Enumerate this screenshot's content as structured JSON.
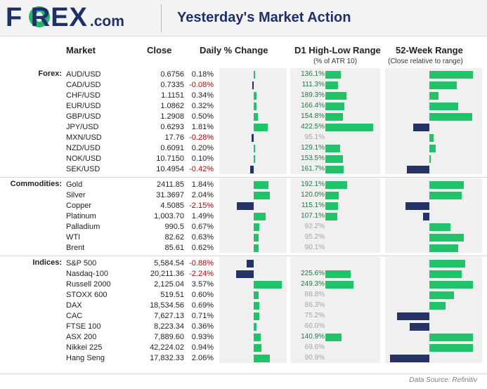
{
  "header": {
    "logo_main": "F   REX",
    "logo_sub": ".com",
    "title": "Yesterday's Market Action"
  },
  "columns": {
    "market": "Market",
    "close": "Close",
    "daily_change": "Daily % Change",
    "range": "D1 High-Low Range",
    "range_sub": "(% of ATR 10)",
    "week52": "52-Week Range",
    "week52_sub": "(Close relative to range)"
  },
  "groups": [
    {
      "label": "Forex:",
      "rows": [
        {
          "market": "AUD/USD",
          "close": "0.6756",
          "chg": "0.18%",
          "chg_v": 0.18,
          "rng": "136.1%",
          "rng_v": 136.1,
          "rng_strong": true,
          "w52": 0.62
        },
        {
          "market": "CAD/USD",
          "close": "0.7335",
          "chg": "-0.08%",
          "chg_v": -0.08,
          "rng": "111.3%",
          "rng_v": 111.3,
          "rng_strong": true,
          "w52": 0.39
        },
        {
          "market": "CHF/USD",
          "close": "1.1151",
          "chg": "0.34%",
          "chg_v": 0.34,
          "rng": "189.3%",
          "rng_v": 189.3,
          "rng_strong": true,
          "w52": 0.13
        },
        {
          "market": "EUR/USD",
          "close": "1.0862",
          "chg": "0.32%",
          "chg_v": 0.32,
          "rng": "166.4%",
          "rng_v": 166.4,
          "rng_strong": true,
          "w52": 0.41
        },
        {
          "market": "GBP/USD",
          "close": "1.2908",
          "chg": "0.50%",
          "chg_v": 0.5,
          "rng": "154.8%",
          "rng_v": 154.8,
          "rng_strong": true,
          "w52": 0.61
        },
        {
          "market": "JPY/USD",
          "close": "0.6293",
          "chg": "1.81%",
          "chg_v": 1.81,
          "rng": "422.5%",
          "rng_v": 422.5,
          "rng_strong": true,
          "w52": -0.23
        },
        {
          "market": "MXN/USD",
          "close": "17.76",
          "chg": "-0.28%",
          "chg_v": -0.28,
          "rng": "95.1%",
          "rng_v": 95.1,
          "rng_strong": false,
          "w52": 0.06
        },
        {
          "market": "NZD/USD",
          "close": "0.6091",
          "chg": "0.20%",
          "chg_v": 0.2,
          "rng": "129.1%",
          "rng_v": 129.1,
          "rng_strong": true,
          "w52": 0.09
        },
        {
          "market": "NOK/USD",
          "close": "10.7150",
          "chg": "0.10%",
          "chg_v": 0.1,
          "rng": "153.5%",
          "rng_v": 153.5,
          "rng_strong": true,
          "w52": 0.01
        },
        {
          "market": "SEK/USD",
          "close": "10.4954",
          "chg": "-0.42%",
          "chg_v": -0.42,
          "rng": "161.7%",
          "rng_v": 161.7,
          "rng_strong": true,
          "w52": -0.32
        }
      ]
    },
    {
      "label": "Commodities:",
      "rows": [
        {
          "market": "Gold",
          "close": "2411.85",
          "chg": "1.84%",
          "chg_v": 1.84,
          "rng": "192.1%",
          "rng_v": 192.1,
          "rng_strong": true,
          "w52": 0.49
        },
        {
          "market": "Silver",
          "close": "31.3697",
          "chg": "2.04%",
          "chg_v": 2.04,
          "rng": "120.0%",
          "rng_v": 120.0,
          "rng_strong": true,
          "w52": 0.46
        },
        {
          "market": "Copper",
          "close": "4.5085",
          "chg": "-2.15%",
          "chg_v": -2.15,
          "rng": "115.1%",
          "rng_v": 115.1,
          "rng_strong": true,
          "w52": -0.34
        },
        {
          "market": "Platinum",
          "close": "1,003.70",
          "chg": "1.49%",
          "chg_v": 1.49,
          "rng": "107.1%",
          "rng_v": 107.1,
          "rng_strong": true,
          "w52": -0.09
        },
        {
          "market": "Palladium",
          "close": "990.5",
          "chg": "0.67%",
          "chg_v": 0.67,
          "rng": "92.2%",
          "rng_v": 92.2,
          "rng_strong": false,
          "w52": 0.3
        },
        {
          "market": "WTI",
          "close": "82.62",
          "chg": "0.63%",
          "chg_v": 0.63,
          "rng": "95.2%",
          "rng_v": 95.2,
          "rng_strong": false,
          "w52": 0.49
        },
        {
          "market": "Brent",
          "close": "85.61",
          "chg": "0.62%",
          "chg_v": 0.62,
          "rng": "90.1%",
          "rng_v": 90.1,
          "rng_strong": false,
          "w52": 0.41
        }
      ]
    },
    {
      "label": "Indices:",
      "rows": [
        {
          "market": "S&P 500",
          "close": "5,584.54",
          "chg": "-0.88%",
          "chg_v": -0.88,
          "rng": "",
          "rng_v": 0,
          "rng_strong": false,
          "w52": 0.51
        },
        {
          "market": "Nasdaq-100",
          "close": "20,211.36",
          "chg": "-2.24%",
          "chg_v": -2.24,
          "rng": "225.6%",
          "rng_v": 225.6,
          "rng_strong": true,
          "w52": 0.46
        },
        {
          "market": "Russell 2000",
          "close": "2,125.04",
          "chg": "3.57%",
          "chg_v": 3.57,
          "rng": "249.3%",
          "rng_v": 249.3,
          "rng_strong": true,
          "w52": 0.62
        },
        {
          "market": "STOXX 600",
          "close": "519.51",
          "chg": "0.60%",
          "chg_v": 0.6,
          "rng": "88.8%",
          "rng_v": 88.8,
          "rng_strong": false,
          "w52": 0.35
        },
        {
          "market": "DAX",
          "close": "18,534.56",
          "chg": "0.69%",
          "chg_v": 0.69,
          "rng": "86.3%",
          "rng_v": 86.3,
          "rng_strong": false,
          "w52": 0.23
        },
        {
          "market": "CAC",
          "close": "7,627.13",
          "chg": "0.71%",
          "chg_v": 0.71,
          "rng": "75.2%",
          "rng_v": 75.2,
          "rng_strong": false,
          "w52": -0.46
        },
        {
          "market": "FTSE 100",
          "close": "8,223.34",
          "chg": "0.36%",
          "chg_v": 0.36,
          "rng": "60.0%",
          "rng_v": 60.0,
          "rng_strong": false,
          "w52": -0.28
        },
        {
          "market": "ASX 200",
          "close": "7,889.60",
          "chg": "0.93%",
          "chg_v": 0.93,
          "rng": "140.9%",
          "rng_v": 140.9,
          "rng_strong": true,
          "w52": 0.62
        },
        {
          "market": "Nikkei 225",
          "close": "42,224.02",
          "chg": "0.94%",
          "chg_v": 0.94,
          "rng": "69.6%",
          "rng_v": 69.6,
          "rng_strong": false,
          "w52": 0.62
        },
        {
          "market": "Hang Seng",
          "close": "17,832.33",
          "chg": "2.06%",
          "chg_v": 2.06,
          "rng": "90.9%",
          "rng_v": 90.9,
          "rng_strong": false,
          "w52": -0.56
        }
      ]
    }
  ],
  "colors": {
    "positive": "#22c26a",
    "negative": "#263266",
    "negative_text": "#c00000",
    "brand": "#1e2f6c"
  },
  "source": "Data Source: Refinitiv",
  "chart_data": {
    "type": "table",
    "columns": [
      "Market",
      "Close",
      "Daily % Change",
      "D1 High-Low Range (% of ATR 10)",
      "52-Week Range (Close relative to range)"
    ],
    "daily_change_range": [
      -2.24,
      3.57
    ],
    "range_pct_range": [
      0,
      422.5
    ]
  }
}
